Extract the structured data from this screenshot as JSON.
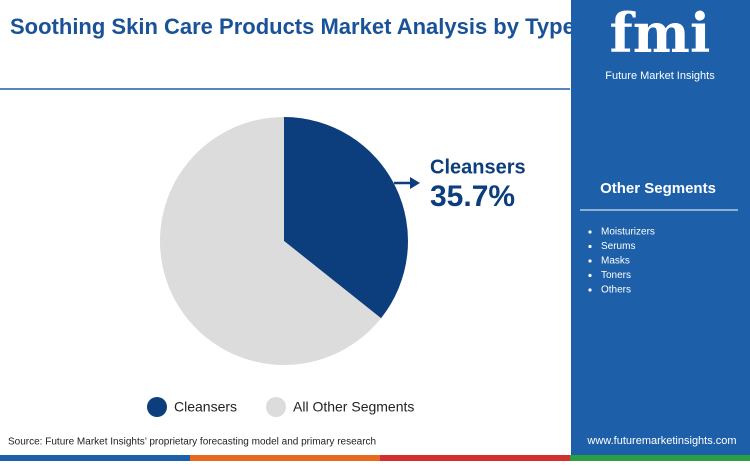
{
  "chart_data": {
    "type": "pie",
    "title": "Soothing Skin Care Products Market Analysis by Type",
    "categories": [
      "Cleansers",
      "All Other Segments"
    ],
    "values": [
      35.7,
      64.3
    ],
    "value_labels": [
      "35.7%",
      null
    ],
    "colors": [
      "#0c3d7c",
      "#dcdcdc"
    ]
  },
  "source": "Source: Future Market Insights’ proprietary forecasting model and primary research",
  "sidebar": {
    "logo": "fmi",
    "brand": "Future Market Insights",
    "heading": "Other Segments",
    "items": [
      "Moisturizers",
      "Serums",
      "Masks",
      "Toners",
      "Others"
    ],
    "website": "www.futuremarketinsights.com"
  }
}
